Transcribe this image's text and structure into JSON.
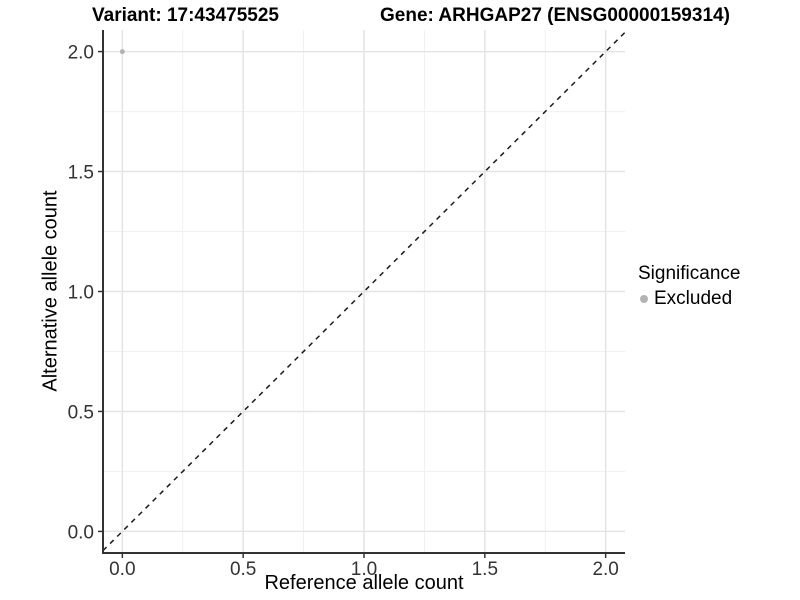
{
  "chart_data": {
    "type": "scatter",
    "title_left": "Variant: 17:43475525",
    "title_right": "Gene: ARHGAP27 (ENSG00000159314)",
    "xlabel": "Reference allele count",
    "ylabel": "Alternative allele count",
    "xlim": [
      -0.08,
      2.08
    ],
    "ylim": [
      -0.09,
      2.09
    ],
    "x_ticks": {
      "values": [
        0,
        0.5,
        1,
        1.5,
        2
      ],
      "labels": [
        "0.0",
        "0.5",
        "1.0",
        "1.5",
        "2.0"
      ]
    },
    "y_ticks": {
      "values": [
        0,
        0.5,
        1,
        1.5,
        2
      ],
      "labels": [
        "0.0",
        "0.5",
        "1.0",
        "1.5",
        "2.0"
      ]
    },
    "x_minor_ticks": [
      0.25,
      0.75,
      1.25,
      1.75
    ],
    "y_minor_ticks": [
      0.25,
      0.75,
      1.25,
      1.75
    ],
    "grid": true,
    "points": [
      {
        "x": 0.0,
        "y": 2.0,
        "series": "Excluded"
      }
    ],
    "identity_line": {
      "style": "dashed",
      "slope": 1,
      "intercept": 0
    },
    "legend": {
      "title": "Significance",
      "position": "right",
      "items": [
        {
          "label": "Excluded",
          "color": "#B3B3B3",
          "marker": "circle"
        }
      ]
    },
    "series_colors": {
      "Excluded": "#B3B3B3"
    },
    "style": {
      "background": "#FFFFFF",
      "grid_major_color": "#E4E4E4",
      "grid_minor_color": "#F0F0F0",
      "axis_line_color": "#333333",
      "tick_label_color": "#333333",
      "identity_line_color": "#1A1A1A",
      "point_radius": 2.5
    }
  }
}
